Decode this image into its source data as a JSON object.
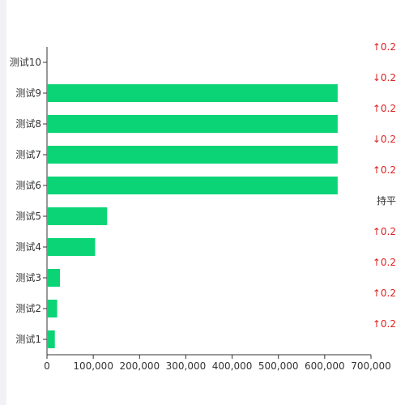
{
  "chart_data": {
    "type": "bar",
    "orientation": "horizontal",
    "categories": [
      "测试1",
      "测试2",
      "测试3",
      "测试4",
      "测试5",
      "测试6",
      "测试7",
      "测试8",
      "测试9",
      "测试10"
    ],
    "series": [
      {
        "values": [
          17000,
          22000,
          28000,
          104000,
          130000,
          628000,
          628000,
          628000,
          628000,
          0
        ]
      }
    ],
    "xlim": [
      0,
      700000
    ],
    "x_ticks": [
      "0",
      "100,000",
      "200,000",
      "300,000",
      "400,000",
      "500,000",
      "600,000",
      "700,000"
    ],
    "x_tick_values": [
      0,
      100000,
      200000,
      300000,
      400000,
      500000,
      600000,
      700000
    ],
    "bar_color": "#0bd477",
    "right_labels": [
      {
        "text": "↑0.2",
        "color": "#e02020"
      },
      {
        "text": "↑0.2",
        "color": "#e02020"
      },
      {
        "text": "↑0.2",
        "color": "#e02020"
      },
      {
        "text": "↑0.2",
        "color": "#e02020"
      },
      {
        "text": "持平",
        "color": "#333333"
      },
      {
        "text": "↑0.2",
        "color": "#e02020"
      },
      {
        "text": "↓0.2",
        "color": "#e02020"
      },
      {
        "text": "↑0.2",
        "color": "#e02020"
      },
      {
        "text": "↓0.2",
        "color": "#e02020"
      },
      {
        "text": "↑0.2",
        "color": "#e02020"
      }
    ],
    "grid": false,
    "legend": "none"
  }
}
